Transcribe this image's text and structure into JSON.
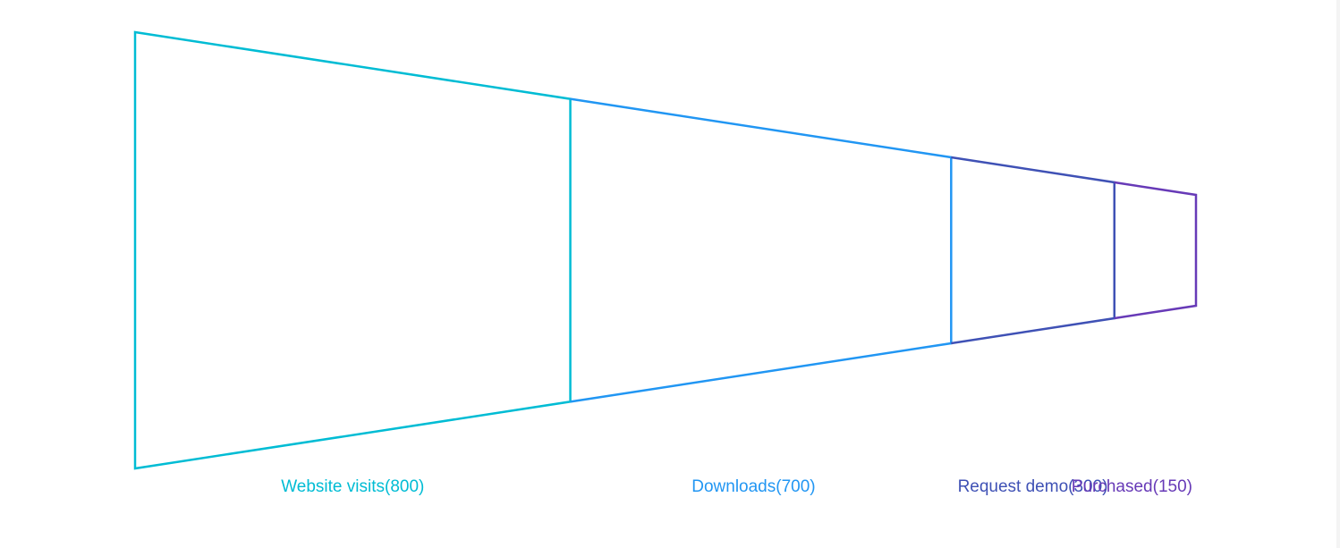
{
  "chart_data": {
    "type": "funnel",
    "title": "",
    "stages": [
      {
        "label": "Website visits(800)",
        "name": "Website visits",
        "value": 800,
        "color": "#00bcd4"
      },
      {
        "label": "Downloads(700)",
        "name": "Downloads",
        "value": 700,
        "color": "#2196f3"
      },
      {
        "label": "Request demo(300)",
        "name": "Request demo",
        "value": 300,
        "color": "#3f51b5"
      },
      {
        "label": "Purchased(150)",
        "name": "Purchased",
        "value": 150,
        "color": "#673ab7"
      }
    ],
    "grid": false,
    "legend": "none",
    "style": "outline"
  }
}
